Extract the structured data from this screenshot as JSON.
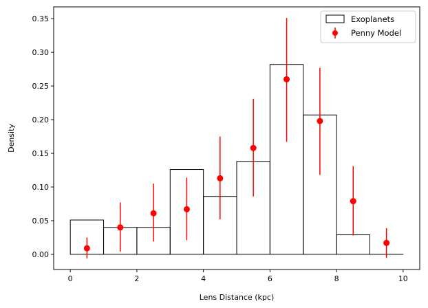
{
  "chart_data": {
    "type": "bar",
    "xlabel": "Lens Distance (kpc)",
    "ylabel": "Density",
    "xlim": [
      -0.5,
      10.5
    ],
    "ylim": [
      -0.0225,
      0.3675
    ],
    "xticks": [
      0,
      2,
      4,
      6,
      8,
      10
    ],
    "yticks": [
      0.0,
      0.05,
      0.1,
      0.15,
      0.2,
      0.25,
      0.3,
      0.35
    ],
    "xtick_labels": [
      "0",
      "2",
      "4",
      "6",
      "8",
      "10"
    ],
    "ytick_labels": [
      "0.00",
      "0.05",
      "0.10",
      "0.15",
      "0.20",
      "0.25",
      "0.30",
      "0.35"
    ],
    "legend_position": "top-right",
    "series": [
      {
        "name": "Exoplanets",
        "kind": "step-histogram",
        "bin_edges": [
          0,
          1,
          2,
          3,
          4,
          5,
          6,
          7,
          8,
          9,
          10
        ],
        "values": [
          0.051,
          0.04,
          0.04,
          0.126,
          0.086,
          0.138,
          0.282,
          0.207,
          0.029,
          0.0
        ],
        "color": "#000000"
      },
      {
        "name": "Penny Model",
        "kind": "errorbar",
        "x": [
          0.5,
          1.5,
          2.5,
          3.5,
          4.5,
          5.5,
          6.5,
          7.5,
          8.5,
          9.5
        ],
        "values": [
          0.009,
          0.04,
          0.061,
          0.067,
          0.113,
          0.158,
          0.26,
          0.198,
          0.079,
          0.017
        ],
        "err_low": [
          0.015,
          0.036,
          0.042,
          0.046,
          0.061,
          0.072,
          0.093,
          0.08,
          0.051,
          0.022
        ],
        "err_high": [
          0.016,
          0.037,
          0.044,
          0.047,
          0.062,
          0.073,
          0.091,
          0.079,
          0.052,
          0.022
        ],
        "color": "#ff0000"
      }
    ]
  }
}
